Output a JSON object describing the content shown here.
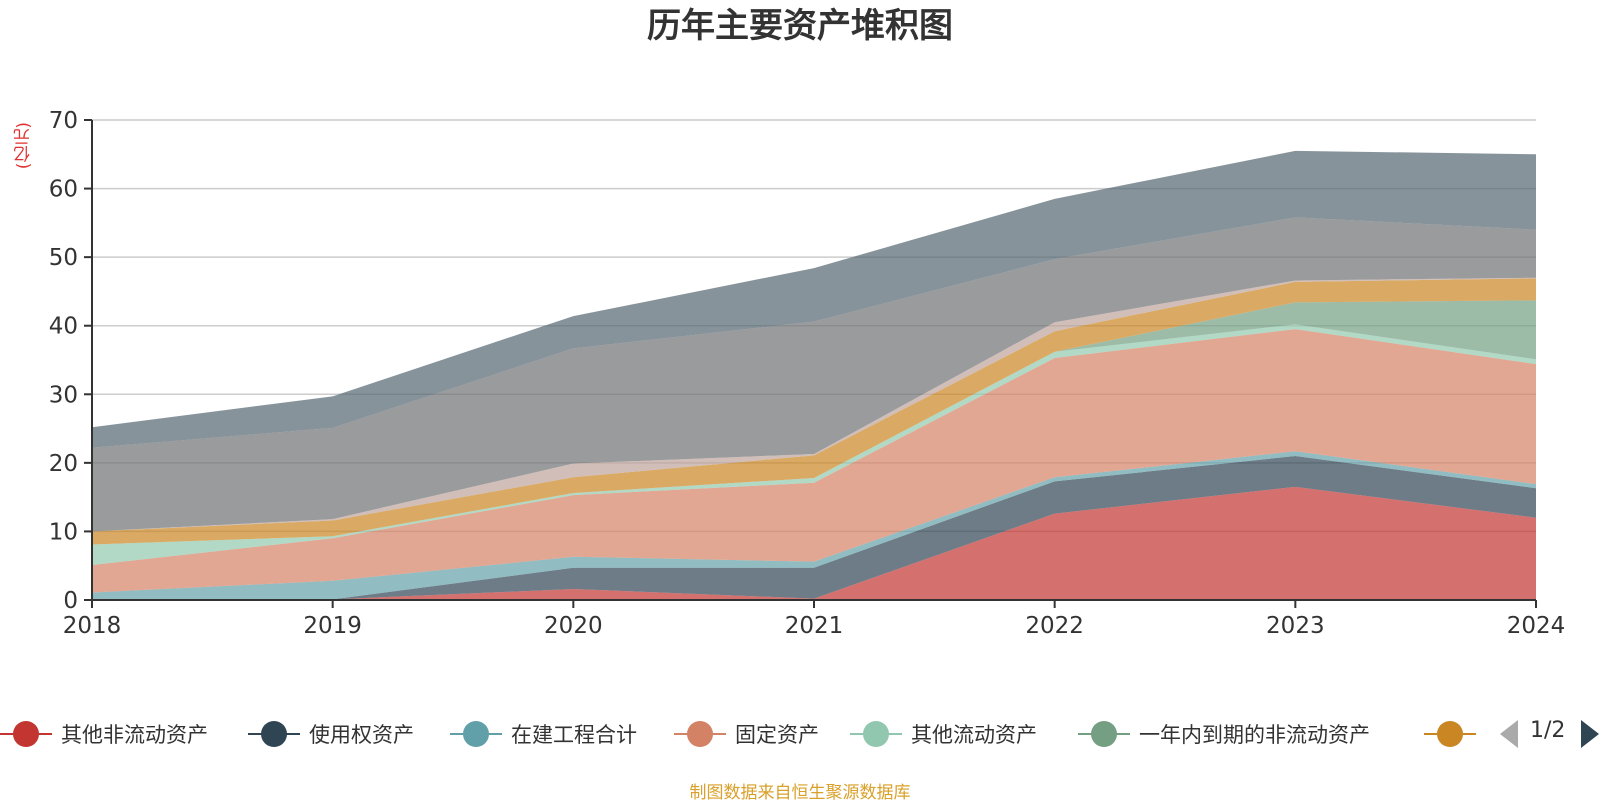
{
  "chart_data": {
    "type": "area",
    "stacked": true,
    "title": "历年主要资产堆积图",
    "unit_label": "(亿元)",
    "x": [
      "2018",
      "2019",
      "2020",
      "2021",
      "2022",
      "2023",
      "2024"
    ],
    "ylim": [
      0,
      70
    ],
    "yticks": [
      0,
      10,
      20,
      30,
      40,
      50,
      60,
      70
    ],
    "grid": true,
    "legend_position": "bottom",
    "series": [
      {
        "name": "其他非流动资产",
        "color": "#c23531",
        "values": [
          0.1,
          0.1,
          1.6,
          0.2,
          12.6,
          16.5,
          12.0
        ]
      },
      {
        "name": "使用权资产",
        "color": "#2f4554",
        "values": [
          0.0,
          0.0,
          3.1,
          4.5,
          4.7,
          4.5,
          4.3
        ]
      },
      {
        "name": "在建工程合计",
        "color": "#61a0a8",
        "values": [
          1.0,
          2.7,
          1.6,
          0.9,
          0.6,
          0.7,
          0.6
        ]
      },
      {
        "name": "固定资产",
        "color": "#d48265",
        "values": [
          4.0,
          6.2,
          9.0,
          11.5,
          17.4,
          17.8,
          17.5
        ]
      },
      {
        "name": "其他流动资产",
        "color": "#91c7ae",
        "values": [
          3.0,
          0.3,
          0.3,
          0.7,
          0.9,
          0.7,
          0.7
        ]
      },
      {
        "name": "一年内到期的非流动资产",
        "color": "#749f83",
        "values": [
          0.0,
          0.0,
          0.0,
          0.0,
          0.0,
          3.2,
          8.6
        ]
      },
      {
        "name": "",
        "color": "#ca8622",
        "values": [
          1.9,
          2.3,
          2.3,
          3.3,
          3.0,
          3.0,
          3.2
        ]
      },
      {
        "name": "",
        "color": "#bda29a",
        "values": [
          0.0,
          0.2,
          2.0,
          0.2,
          1.3,
          0.2,
          0.1
        ]
      },
      {
        "name": "",
        "color": "#6e7074",
        "values": [
          12.2,
          13.3,
          16.8,
          19.3,
          9.2,
          9.2,
          7.0
        ]
      },
      {
        "name": "",
        "color": "#546570",
        "values": [
          3.0,
          4.6,
          4.7,
          7.8,
          8.8,
          9.7,
          11.0
        ]
      }
    ]
  },
  "legend": {
    "items": [
      {
        "label": "其他非流动资产",
        "color": "#c23531"
      },
      {
        "label": "使用权资产",
        "color": "#2f4554"
      },
      {
        "label": "在建工程合计",
        "color": "#61a0a8"
      },
      {
        "label": "固定资产",
        "color": "#d48265"
      },
      {
        "label": "其他流动资产",
        "color": "#91c7ae"
      },
      {
        "label": "一年内到期的非流动资产",
        "color": "#749f83"
      },
      {
        "label": "",
        "color": "#ca8622"
      }
    ],
    "page_indicator": "1/2"
  },
  "source_note": "制图数据来自恒生聚源数据库"
}
